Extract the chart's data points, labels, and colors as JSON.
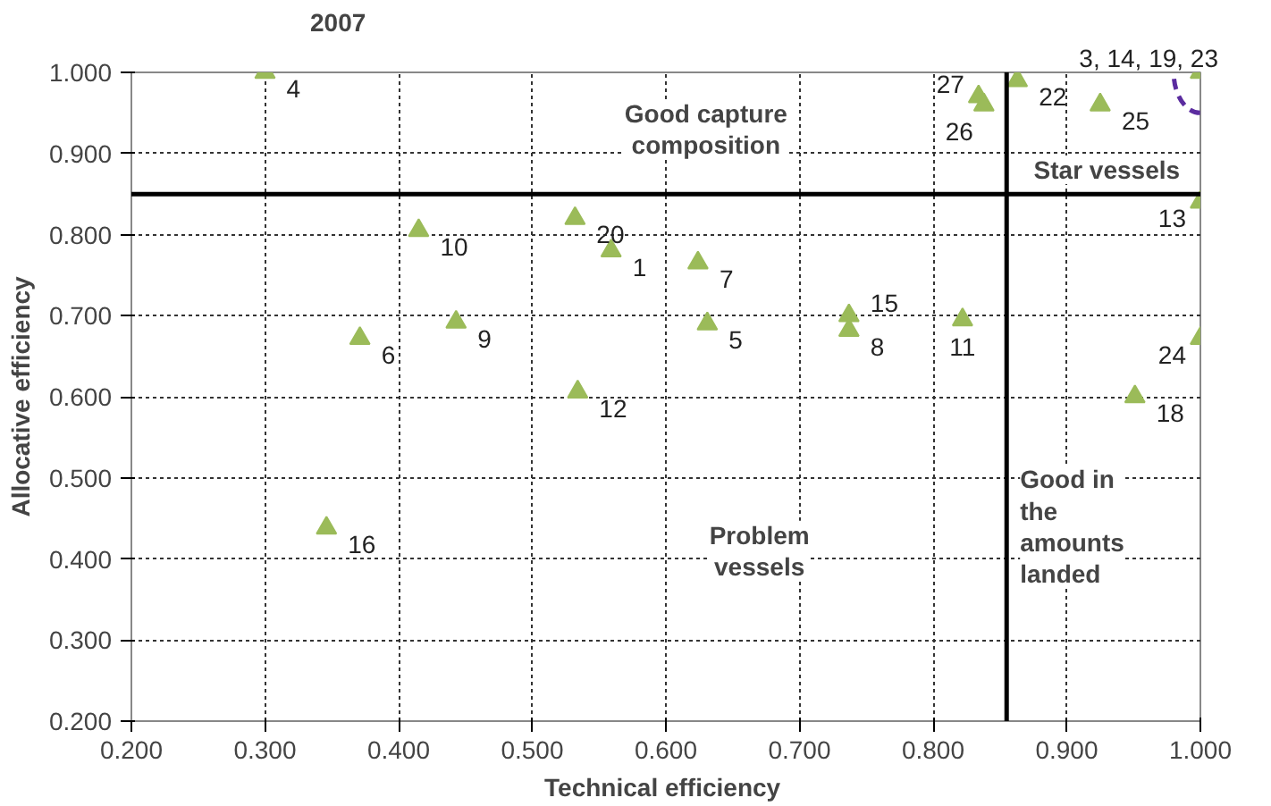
{
  "chart_data": {
    "type": "scatter",
    "title": "2007",
    "xlabel": "Technical  efficiency",
    "ylabel": "Allocative efficiency",
    "x": [
      0.3,
      0.415,
      0.532,
      0.559,
      0.624,
      0.371,
      0.443,
      0.631,
      0.737,
      0.737,
      0.822,
      0.534,
      0.346,
      0.834,
      0.838,
      0.863,
      0.925,
      1.0,
      1.0,
      1.0,
      0.951
    ],
    "series": [
      {
        "color": "#9bbb59",
        "values": [
          1.0,
          0.805,
          0.82,
          0.78,
          0.765,
          0.672,
          0.692,
          0.69,
          0.7,
          0.682,
          0.695,
          0.606,
          0.438,
          0.97,
          0.96,
          0.99,
          0.96,
          1.0,
          0.84,
          0.672,
          0.6
        ]
      }
    ],
    "marker": "triangle",
    "grid": true,
    "xlim": [
      0.2,
      1.0
    ],
    "ylim": [
      0.2,
      1.0
    ],
    "xticks": [
      {
        "value": 0.2,
        "label": "0.200"
      },
      {
        "value": 0.3,
        "label": "0.300"
      },
      {
        "value": 0.4,
        "label": "0.400"
      },
      {
        "value": 0.5,
        "label": "0.500"
      },
      {
        "value": 0.6,
        "label": "0.600"
      },
      {
        "value": 0.7,
        "label": "0.700"
      },
      {
        "value": 0.8,
        "label": "0.800"
      },
      {
        "value": 0.9,
        "label": "0.900"
      },
      {
        "value": 1.0,
        "label": "1.000"
      }
    ],
    "yticks": [
      {
        "value": 0.2,
        "label": "0.200"
      },
      {
        "value": 0.3,
        "label": "0.300"
      },
      {
        "value": 0.4,
        "label": "0.400"
      },
      {
        "value": 0.5,
        "label": "0.500"
      },
      {
        "value": 0.6,
        "label": "0.600"
      },
      {
        "value": 0.7,
        "label": "0.700"
      },
      {
        "value": 0.8,
        "label": "0.800"
      },
      {
        "value": 0.9,
        "label": "0.900"
      },
      {
        "value": 1.0,
        "label": "1.000"
      }
    ],
    "ref_lines": [
      {
        "axis": "x",
        "value": 0.855,
        "color": "#000000"
      },
      {
        "axis": "y",
        "value": 0.85,
        "color": "#000000"
      }
    ],
    "annotations": [
      {
        "text": "4",
        "x": 0.3,
        "y": 1.0
      },
      {
        "text": "10",
        "x": 0.415,
        "y": 0.805
      },
      {
        "text": "20",
        "x": 0.532,
        "y": 0.82
      },
      {
        "text": "1",
        "x": 0.559,
        "y": 0.78
      },
      {
        "text": "7",
        "x": 0.624,
        "y": 0.765
      },
      {
        "text": "6",
        "x": 0.371,
        "y": 0.672
      },
      {
        "text": "9",
        "x": 0.443,
        "y": 0.692
      },
      {
        "text": "5",
        "x": 0.631,
        "y": 0.69
      },
      {
        "text": "15",
        "x": 0.737,
        "y": 0.7
      },
      {
        "text": "8",
        "x": 0.737,
        "y": 0.682
      },
      {
        "text": "11",
        "x": 0.822,
        "y": 0.695
      },
      {
        "text": "12",
        "x": 0.534,
        "y": 0.606
      },
      {
        "text": "16",
        "x": 0.346,
        "y": 0.438
      },
      {
        "text": "27",
        "x": 0.834,
        "y": 0.97
      },
      {
        "text": "26",
        "x": 0.838,
        "y": 0.96
      },
      {
        "text": "22",
        "x": 0.863,
        "y": 0.99
      },
      {
        "text": "25",
        "x": 0.925,
        "y": 0.96
      },
      {
        "text": "3, 14, 19, 23",
        "x": 1.0,
        "y": 1.0
      },
      {
        "text": "13",
        "x": 1.0,
        "y": 0.84
      },
      {
        "text": "24",
        "x": 1.0,
        "y": 0.672
      },
      {
        "text": "18",
        "x": 0.951,
        "y": 0.6
      },
      "Good capture\ncomposition",
      "Star vessels",
      "Problem\nvessels",
      "Good in\nthe\namounts\nlanded"
    ]
  }
}
